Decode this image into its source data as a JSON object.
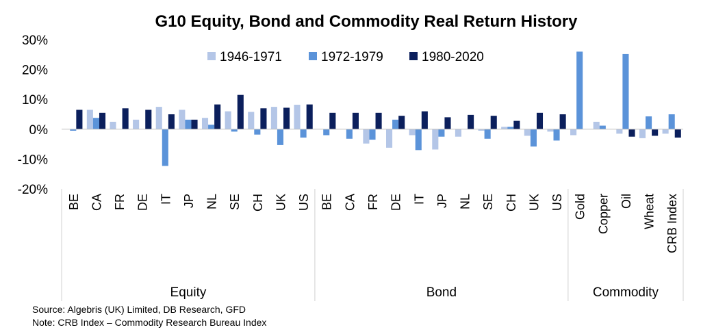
{
  "chart_data": {
    "type": "bar",
    "title": "G10 Equity, Bond and Commodity Real Return History",
    "ylim": [
      -20,
      30
    ],
    "yticks": [
      "-20%",
      "-10%",
      "0%",
      "10%",
      "20%",
      "30%"
    ],
    "ytick_values": [
      -20,
      -10,
      0,
      10,
      20,
      30
    ],
    "legend_position": "top-center",
    "colors": {
      "1946-1971": "#b4c6e7",
      "1972-1979": "#5b93d9",
      "1980-2020": "#0b1f5c"
    },
    "series_names": [
      "1946-1971",
      "1972-1979",
      "1980-2020"
    ],
    "groups": [
      {
        "name": "Equity",
        "categories": [
          "BE",
          "CA",
          "FR",
          "DE",
          "IT",
          "JP",
          "NL",
          "SE",
          "CH",
          "UK",
          "US"
        ],
        "series": [
          {
            "name": "1946-1971",
            "values": [
              0.0,
              6.5,
              2.5,
              3.2,
              7.5,
              6.5,
              3.8,
              6.0,
              5.8,
              7.5,
              8.2
            ]
          },
          {
            "name": "1972-1979",
            "values": [
              -0.5,
              3.8,
              0.0,
              0.0,
              -12.3,
              3.2,
              1.5,
              -0.8,
              -1.8,
              -5.3,
              -2.8
            ]
          },
          {
            "name": "1980-2020",
            "values": [
              6.5,
              5.5,
              7.0,
              6.5,
              5.0,
              3.2,
              8.3,
              11.5,
              7.0,
              7.2,
              8.3
            ]
          }
        ]
      },
      {
        "name": "Bond",
        "categories": [
          "BE",
          "CA",
          "FR",
          "DE",
          "IT",
          "JP",
          "NL",
          "SE",
          "CH",
          "UK",
          "US"
        ],
        "series": [
          {
            "name": "1946-1971",
            "values": [
              0.0,
              0.0,
              -4.8,
              -6.2,
              -2.0,
              -6.8,
              -2.5,
              -0.5,
              0.8,
              -2.2,
              -0.8
            ]
          },
          {
            "name": "1972-1979",
            "values": [
              -2.0,
              -3.2,
              -3.5,
              3.2,
              -7.0,
              -2.5,
              0.0,
              -3.2,
              0.8,
              -5.8,
              -3.8
            ]
          },
          {
            "name": "1980-2020",
            "values": [
              5.5,
              5.5,
              5.5,
              4.5,
              6.0,
              4.0,
              4.8,
              4.5,
              2.8,
              5.5,
              5.0
            ]
          }
        ]
      },
      {
        "name": "Commodity",
        "categories": [
          "Gold",
          "Copper",
          "Oil",
          "Wheat",
          "CRB Index"
        ],
        "series": [
          {
            "name": "1946-1971",
            "values": [
              -2.0,
              2.5,
              -1.5,
              -3.0,
              -1.5
            ]
          },
          {
            "name": "1972-1979",
            "values": [
              26.0,
              1.2,
              25.2,
              4.3,
              5.0
            ]
          },
          {
            "name": "1980-2020",
            "values": [
              0.0,
              0.0,
              -2.5,
              -2.2,
              -2.8
            ]
          }
        ]
      }
    ],
    "notes": [
      "Source: Algebris (UK) Limited, DB Research, GFD",
      "Note: CRB Index – Commodity Research Bureau Index"
    ]
  }
}
